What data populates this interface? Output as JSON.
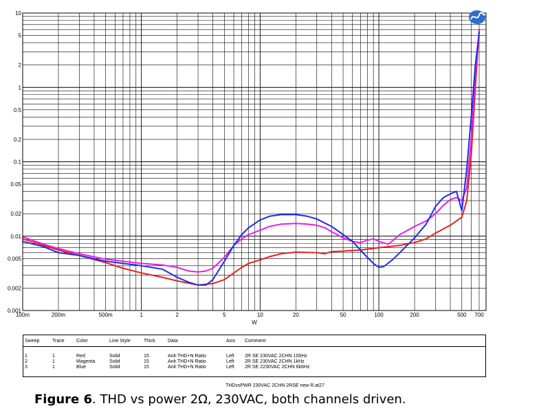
{
  "chart_data": {
    "type": "line",
    "title": "",
    "xlabel": "W",
    "ylabel": "",
    "x_scale": "log",
    "y_scale": "log",
    "xlim": [
      0.1,
      800
    ],
    "ylim": [
      0.001,
      10
    ],
    "grid": true,
    "x_tick_labels": [
      {
        "value": 0.1,
        "label": "100m"
      },
      {
        "value": 0.2,
        "label": "200m"
      },
      {
        "value": 0.5,
        "label": "500m"
      },
      {
        "value": 1,
        "label": "1"
      },
      {
        "value": 2,
        "label": "2"
      },
      {
        "value": 5,
        "label": "5"
      },
      {
        "value": 10,
        "label": "10"
      },
      {
        "value": 20,
        "label": "20"
      },
      {
        "value": 50,
        "label": "50"
      },
      {
        "value": 100,
        "label": "100"
      },
      {
        "value": 200,
        "label": "200"
      },
      {
        "value": 500,
        "label": "500"
      },
      {
        "value": 700,
        "label": "700"
      }
    ],
    "y_tick_labels": [
      {
        "value": 10,
        "label": "10"
      },
      {
        "value": 5,
        "label": "5"
      },
      {
        "value": 2,
        "label": "2"
      },
      {
        "value": 1,
        "label": "1"
      },
      {
        "value": 0.5,
        "label": "0.5"
      },
      {
        "value": 0.2,
        "label": "0.2"
      },
      {
        "value": 0.1,
        "label": "0.1"
      },
      {
        "value": 0.05,
        "label": "0.05"
      },
      {
        "value": 0.02,
        "label": "0.02"
      },
      {
        "value": 0.01,
        "label": "0.01"
      },
      {
        "value": 0.005,
        "label": "0.005"
      },
      {
        "value": 0.002,
        "label": "0.002"
      },
      {
        "value": 0.001,
        "label": "0.001"
      }
    ],
    "series": [
      {
        "color": "#e8201c",
        "points": [
          [
            0.1,
            0.0092
          ],
          [
            0.15,
            0.0075
          ],
          [
            0.2,
            0.0065
          ],
          [
            0.3,
            0.0055
          ],
          [
            0.5,
            0.0044
          ],
          [
            0.7,
            0.0037
          ],
          [
            1,
            0.0032
          ],
          [
            1.5,
            0.0028
          ],
          [
            2,
            0.0025
          ],
          [
            3,
            0.0022
          ],
          [
            4,
            0.0023
          ],
          [
            5,
            0.0026
          ],
          [
            6,
            0.0032
          ],
          [
            7,
            0.0038
          ],
          [
            8,
            0.0043
          ],
          [
            10,
            0.0048
          ],
          [
            12,
            0.0053
          ],
          [
            15,
            0.0058
          ],
          [
            20,
            0.0061
          ],
          [
            30,
            0.006
          ],
          [
            35,
            0.0058
          ],
          [
            40,
            0.0062
          ],
          [
            50,
            0.0063
          ],
          [
            70,
            0.0065
          ],
          [
            100,
            0.007
          ],
          [
            150,
            0.0075
          ],
          [
            200,
            0.0082
          ],
          [
            250,
            0.0092
          ],
          [
            300,
            0.011
          ],
          [
            400,
            0.014
          ],
          [
            450,
            0.016
          ],
          [
            500,
            0.018
          ],
          [
            550,
            0.03
          ],
          [
            600,
            0.12
          ],
          [
            650,
            1.0
          ],
          [
            700,
            6.0
          ]
        ]
      },
      {
        "color": "#e81ce8",
        "points": [
          [
            0.1,
            0.0098
          ],
          [
            0.15,
            0.0078
          ],
          [
            0.2,
            0.0068
          ],
          [
            0.3,
            0.0058
          ],
          [
            0.5,
            0.0049
          ],
          [
            0.7,
            0.0046
          ],
          [
            1,
            0.0043
          ],
          [
            1.5,
            0.0041
          ],
          [
            2,
            0.0038
          ],
          [
            2.5,
            0.0034
          ],
          [
            3,
            0.0033
          ],
          [
            3.5,
            0.0034
          ],
          [
            4,
            0.0037
          ],
          [
            5,
            0.0052
          ],
          [
            6,
            0.0075
          ],
          [
            7,
            0.0092
          ],
          [
            8,
            0.0105
          ],
          [
            10,
            0.012
          ],
          [
            12,
            0.0135
          ],
          [
            15,
            0.0145
          ],
          [
            20,
            0.0148
          ],
          [
            25,
            0.0145
          ],
          [
            30,
            0.014
          ],
          [
            35,
            0.013
          ],
          [
            40,
            0.0115
          ],
          [
            50,
            0.0095
          ],
          [
            60,
            0.0085
          ],
          [
            70,
            0.0082
          ],
          [
            80,
            0.0088
          ],
          [
            90,
            0.0092
          ],
          [
            100,
            0.0085
          ],
          [
            120,
            0.0078
          ],
          [
            130,
            0.0086
          ],
          [
            150,
            0.0105
          ],
          [
            200,
            0.0135
          ],
          [
            250,
            0.016
          ],
          [
            300,
            0.02
          ],
          [
            350,
            0.026
          ],
          [
            400,
            0.031
          ],
          [
            450,
            0.033
          ],
          [
            500,
            0.03
          ],
          [
            550,
            0.045
          ],
          [
            600,
            0.2
          ],
          [
            650,
            1.5
          ],
          [
            700,
            5.0
          ]
        ]
      },
      {
        "color": "#1c2ce8",
        "points": [
          [
            0.1,
            0.0085
          ],
          [
            0.15,
            0.0072
          ],
          [
            0.2,
            0.006
          ],
          [
            0.3,
            0.0055
          ],
          [
            0.5,
            0.0046
          ],
          [
            0.7,
            0.0043
          ],
          [
            1,
            0.004
          ],
          [
            1.5,
            0.0036
          ],
          [
            2,
            0.0028
          ],
          [
            2.5,
            0.0024
          ],
          [
            3,
            0.0022
          ],
          [
            3.5,
            0.0022
          ],
          [
            4,
            0.0026
          ],
          [
            5,
            0.0046
          ],
          [
            6,
            0.0075
          ],
          [
            7,
            0.0105
          ],
          [
            8,
            0.013
          ],
          [
            10,
            0.0165
          ],
          [
            12,
            0.0185
          ],
          [
            15,
            0.0195
          ],
          [
            20,
            0.0195
          ],
          [
            25,
            0.0185
          ],
          [
            30,
            0.017
          ],
          [
            40,
            0.0135
          ],
          [
            50,
            0.0105
          ],
          [
            60,
            0.0085
          ],
          [
            70,
            0.0065
          ],
          [
            80,
            0.0052
          ],
          [
            90,
            0.0043
          ],
          [
            100,
            0.0038
          ],
          [
            110,
            0.0039
          ],
          [
            130,
            0.0048
          ],
          [
            150,
            0.006
          ],
          [
            200,
            0.0095
          ],
          [
            250,
            0.0145
          ],
          [
            300,
            0.025
          ],
          [
            350,
            0.033
          ],
          [
            400,
            0.037
          ],
          [
            450,
            0.04
          ],
          [
            500,
            0.022
          ],
          [
            550,
            0.08
          ],
          [
            600,
            0.4
          ],
          [
            650,
            2.0
          ],
          [
            700,
            5.5
          ]
        ]
      }
    ]
  },
  "legend_table": {
    "headers": {
      "sweep": "Sweep",
      "trace": "Trace",
      "color": "Color",
      "line_style": "Line Style",
      "thick": "Thick",
      "data": "Data",
      "axis": "Axis",
      "comment": "Comment"
    },
    "rows": [
      {
        "sweep": "1",
        "trace": "1",
        "color": "Red",
        "line_style": "Solid",
        "thick": "15",
        "data": "Anlr.THD+N Ratio",
        "axis": "Left",
        "comment": "2R SE 230VAC 2CHN 100Hz"
      },
      {
        "sweep": "2",
        "trace": "1",
        "color": "Magenta",
        "line_style": "Solid",
        "thick": "15",
        "data": "Anlr.THD+N Ratio",
        "axis": "Left",
        "comment": "2R SE 230VAC 2CHN 1kHz"
      },
      {
        "sweep": "3",
        "trace": "1",
        "color": "Blue",
        "line_style": "Solid",
        "thick": "15",
        "data": "Anlr.THD+N Ratio",
        "axis": "Left",
        "comment": "2R SE 2230VAC 2CHN 6k6Hz"
      }
    ]
  },
  "file_name": "THDvsPWR 230VAC 2CHN 2RSE new R.at27",
  "caption": {
    "label": "Figure 6",
    "text": ". THD vs power 2Ω, 230VAC, both channels driven."
  },
  "logo_icon": "audio-precision-logo"
}
